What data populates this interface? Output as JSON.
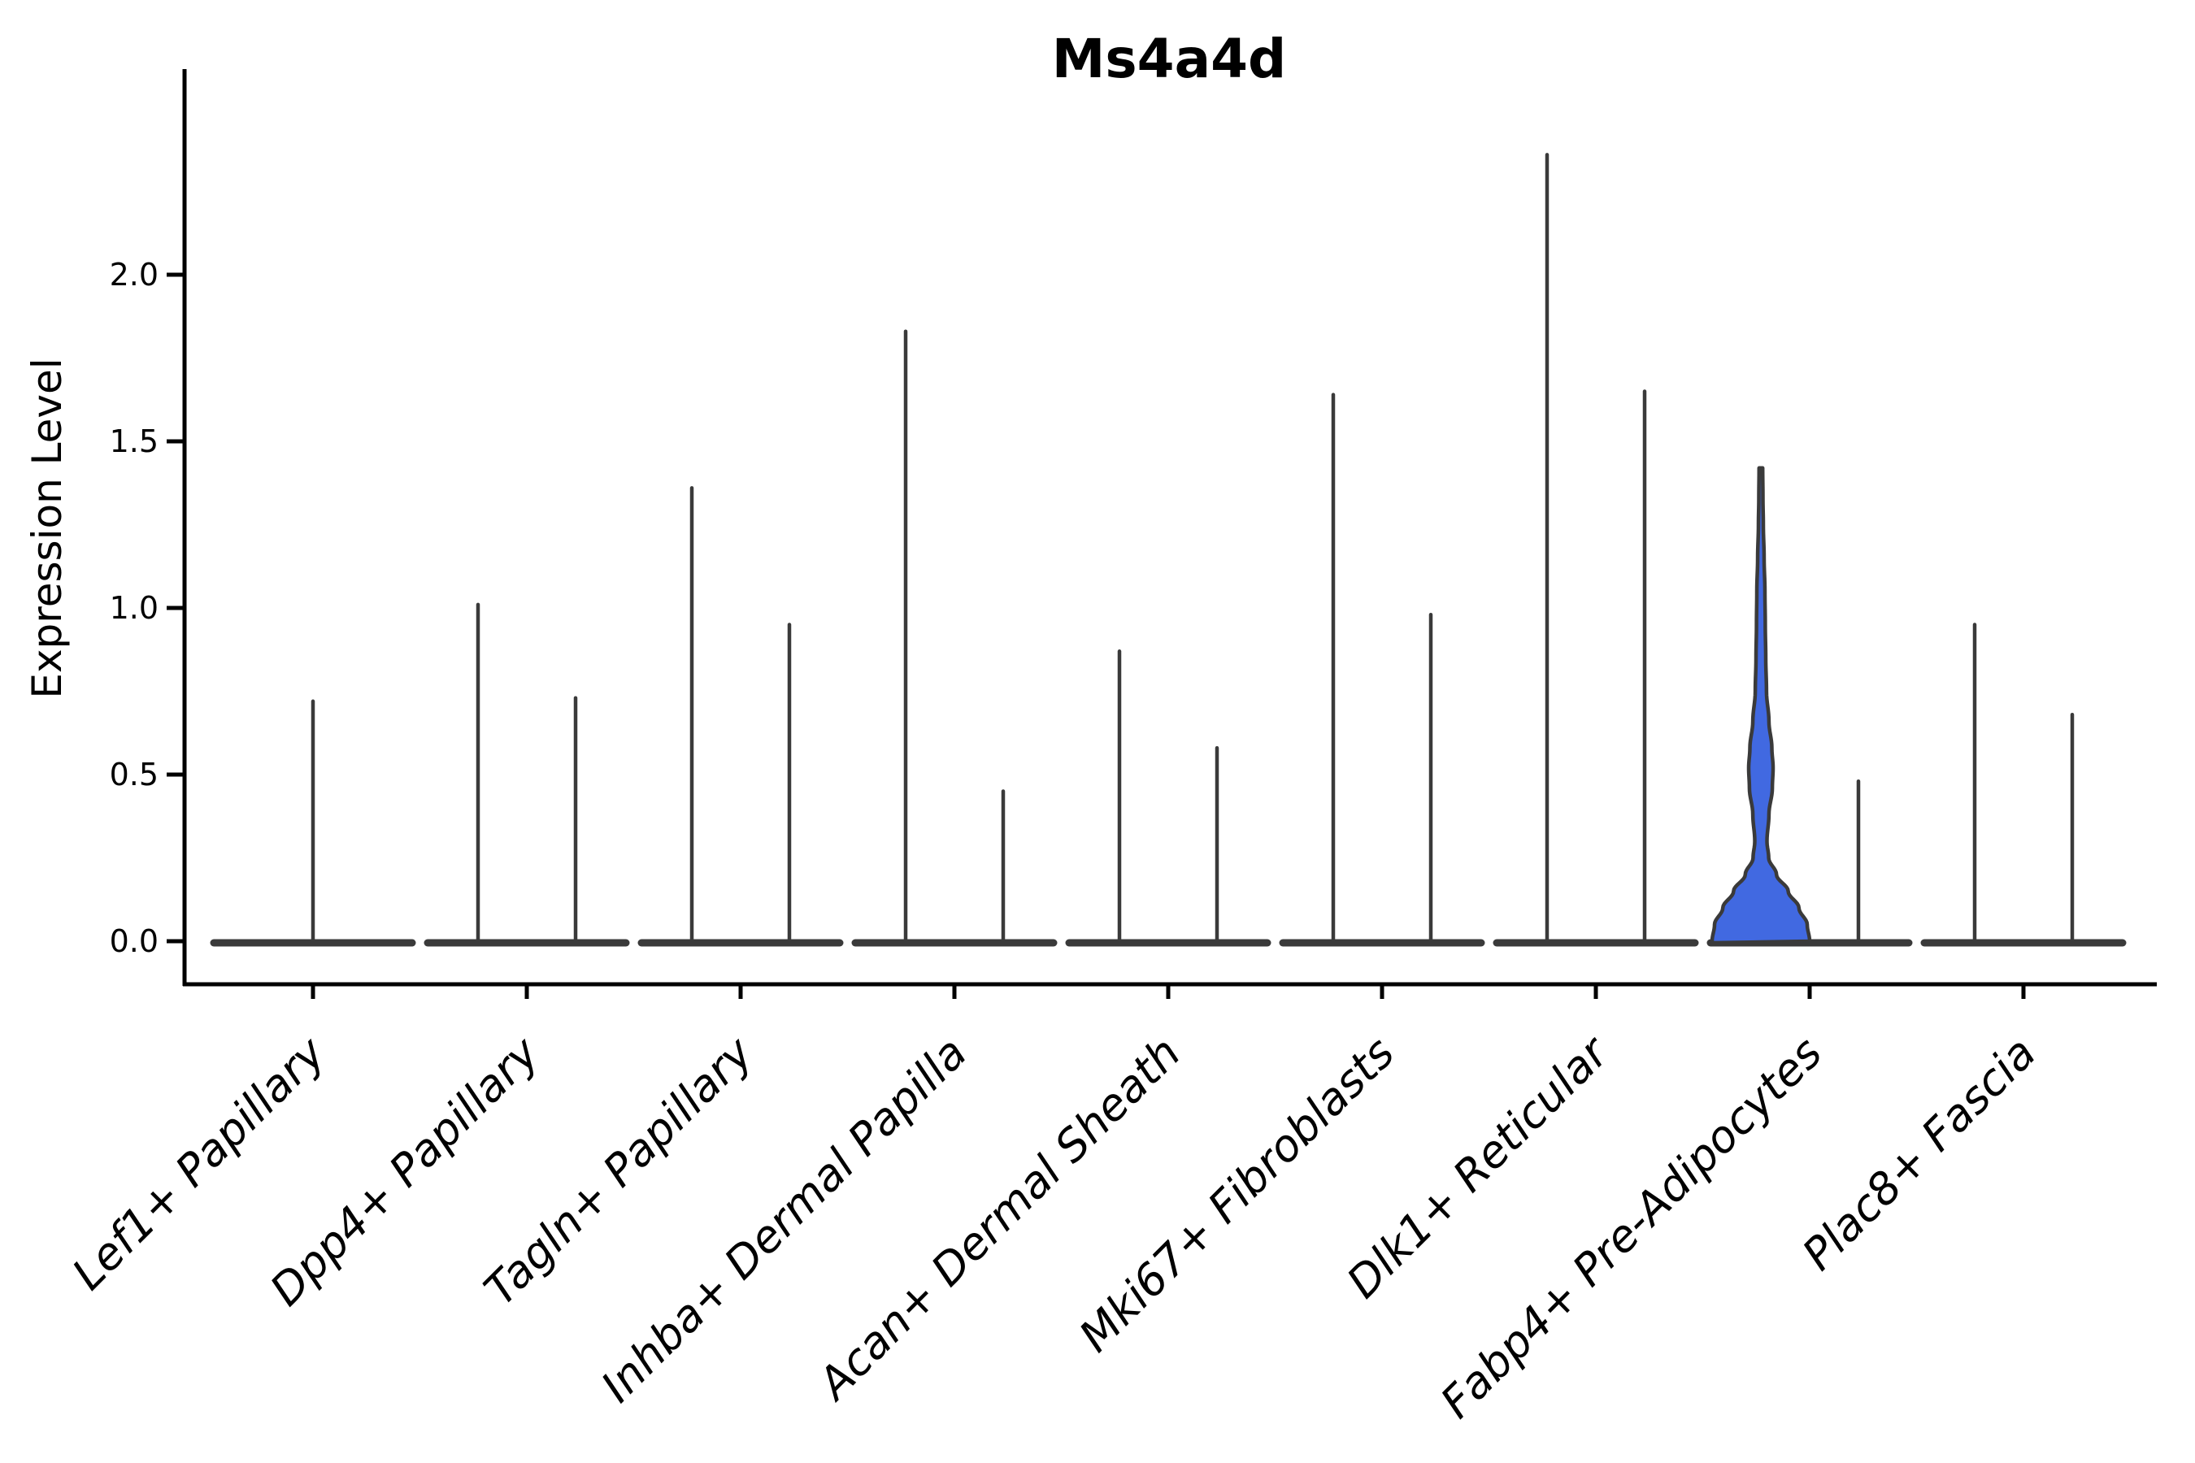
{
  "title": "Ms4a4d",
  "y_axis": {
    "label": "Expression Level",
    "ticks": [
      {
        "label": "0.0",
        "value": 0.0
      },
      {
        "label": "0.5",
        "value": 0.5
      },
      {
        "label": "1.0",
        "value": 1.0
      },
      {
        "label": "1.5",
        "value": 1.5
      },
      {
        "label": "2.0",
        "value": 2.0
      }
    ]
  },
  "colors": {
    "violin_line": "#3a3a3a",
    "axis": "#000000",
    "highlight_fill": "#4169E1",
    "background": "#ffffff"
  },
  "chart_data": {
    "type": "violin",
    "title": "Ms4a4d",
    "xlabel": "",
    "ylabel": "Expression Level",
    "ylim": [
      -0.13,
      2.62
    ],
    "yticks": [
      0.0,
      0.5,
      1.0,
      1.5,
      2.0
    ],
    "grid": false,
    "legend_position": "none",
    "note": "Each category shows narrow violin(s) collapsed at 0 with thin density spikes up to the max expression; only the first violin of Fabp4+ Pre-Adipocytes is a wide filled violin.",
    "categories": [
      "Lef1+ Papillary",
      "Dpp4+ Papillary",
      "Tagln+ Papillary",
      "Inhba+ Dermal Papilla",
      "Acan+ Dermal Sheath",
      "Mki67+ Fibroblasts",
      "Dlk1+ Reticular",
      "Fabp4+ Pre-Adipocytes",
      "Plac8+ Fascia"
    ],
    "series": [
      {
        "category": "Lef1+ Papillary",
        "violins": [
          {
            "max_expression": 0.72,
            "filled": false
          }
        ]
      },
      {
        "category": "Dpp4+ Papillary",
        "violins": [
          {
            "max_expression": 1.01,
            "filled": false
          },
          {
            "max_expression": 0.73,
            "filled": false
          }
        ]
      },
      {
        "category": "Tagln+ Papillary",
        "violins": [
          {
            "max_expression": 1.36,
            "filled": false
          },
          {
            "max_expression": 0.95,
            "filled": false
          }
        ]
      },
      {
        "category": "Inhba+ Dermal Papilla",
        "violins": [
          {
            "max_expression": 1.83,
            "filled": false
          },
          {
            "max_expression": 0.45,
            "filled": false
          }
        ]
      },
      {
        "category": "Acan+ Dermal Sheath",
        "violins": [
          {
            "max_expression": 0.87,
            "filled": false
          },
          {
            "max_expression": 0.58,
            "filled": false
          }
        ]
      },
      {
        "category": "Mki67+ Fibroblasts",
        "violins": [
          {
            "max_expression": 1.64,
            "filled": false
          },
          {
            "max_expression": 0.98,
            "filled": false
          }
        ]
      },
      {
        "category": "Dlk1+ Reticular",
        "violins": [
          {
            "max_expression": 2.36,
            "filled": false
          },
          {
            "max_expression": 1.65,
            "filled": false
          }
        ]
      },
      {
        "category": "Fabp4+ Pre-Adipocytes",
        "violins": [
          {
            "max_expression": 1.42,
            "filled": true,
            "fill_color": "#4169E1",
            "profile_halfwidth": [
              [
                0.0,
                1.0
              ],
              [
                0.05,
                0.95
              ],
              [
                0.1,
                0.78
              ],
              [
                0.15,
                0.56
              ],
              [
                0.2,
                0.32
              ],
              [
                0.25,
                0.16
              ],
              [
                0.3,
                0.125
              ],
              [
                0.38,
                0.165
              ],
              [
                0.46,
                0.235
              ],
              [
                0.52,
                0.25
              ],
              [
                0.58,
                0.225
              ],
              [
                0.66,
                0.165
              ],
              [
                0.75,
                0.115
              ],
              [
                0.85,
                0.1
              ],
              [
                0.95,
                0.09
              ],
              [
                1.05,
                0.083
              ],
              [
                1.15,
                0.066
              ],
              [
                1.25,
                0.05
              ],
              [
                1.33,
                0.042
              ],
              [
                1.42,
                0.037
              ]
            ]
          },
          {
            "max_expression": 0.48,
            "filled": false
          }
        ]
      },
      {
        "category": "Plac8+ Fascia",
        "violins": [
          {
            "max_expression": 0.95,
            "filled": false
          },
          {
            "max_expression": 0.68,
            "filled": false
          }
        ]
      }
    ]
  }
}
